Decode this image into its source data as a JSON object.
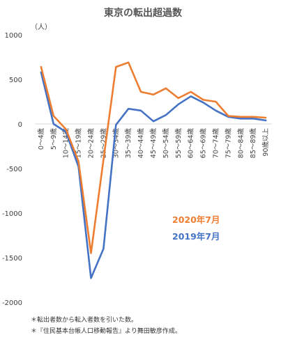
{
  "chart_data": {
    "type": "line",
    "title": "東京の転出超過数",
    "unit_label": "（人）",
    "categories": [
      "0～4歳",
      "5～9歳",
      "10～14歳",
      "15～19歳",
      "20～24歳",
      "25～29歳",
      "30～34歳",
      "35～39歳",
      "40～44歳",
      "45～49歳",
      "50～54歳",
      "55～59歳",
      "60～64歳",
      "65～69歳",
      "70～74歳",
      "75～79歳",
      "80～84歳",
      "85～89歳",
      "90歳以上"
    ],
    "y_ticks": [
      "1000",
      "500",
      "0",
      "-500",
      "-1000",
      "-1500",
      "-2000"
    ],
    "ylim": [
      -2000,
      1000
    ],
    "grid": false,
    "legend": "center-right (text labels)",
    "series": [
      {
        "name": "2020年7月",
        "color": "#ED7D31",
        "values": [
          640,
          90,
          -60,
          -420,
          -1450,
          -400,
          640,
          690,
          360,
          330,
          400,
          290,
          360,
          270,
          250,
          90,
          80,
          80,
          70
        ]
      },
      {
        "name": "2019年7月",
        "color": "#4472C4",
        "values": [
          580,
          0,
          -90,
          -480,
          -1730,
          -1400,
          -10,
          170,
          150,
          30,
          100,
          220,
          310,
          240,
          150,
          80,
          60,
          60,
          40
        ]
      }
    ]
  },
  "notes": [
    "＊転出者数から転入者数を引いた数。",
    "＊『住民基本台帳人口移動報告』より舞田敏彦作成。"
  ]
}
